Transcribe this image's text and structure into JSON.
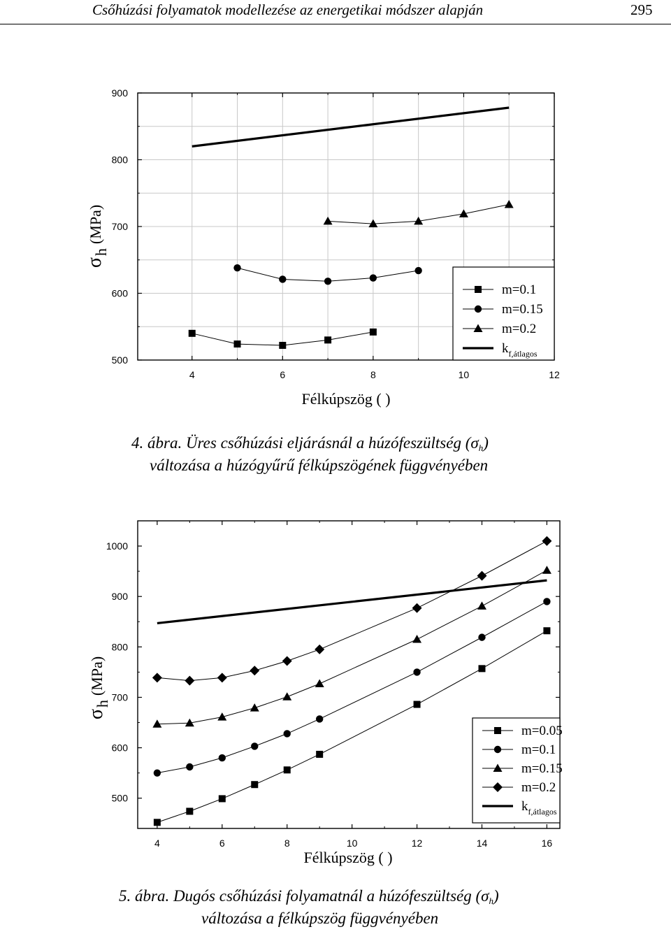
{
  "header": {
    "title": "Csőhúzási folyamatok modellezése az energetikai módszer alapján",
    "page_number": "295"
  },
  "captions": [
    {
      "line1_prefix": "4. ábra. Üres csőhúzási eljárásnál a húzófeszültség (",
      "sigma": "σ",
      "sub": "h",
      "line1_suffix": ")",
      "line2": "változása a húzógyűrű félkúpszögének függvényében"
    },
    {
      "line1_prefix": "5. ábra. Dugós csőhúzási folyamatnál a húzófeszültség (",
      "sigma": "σ",
      "sub": "h",
      "line1_suffix": ")",
      "line2": "változása a félkúpszög függvényében"
    }
  ],
  "chart_data": [
    {
      "type": "line",
      "xlabel": "Félkúpszög ( )",
      "ylabel_sigma": "σ",
      "ylabel_sub": "h",
      "ylabel_unit": "(MPa)",
      "xlim": [
        2.8,
        12
      ],
      "ylim": [
        500,
        900
      ],
      "xticks": [
        4,
        6,
        8,
        10,
        12
      ],
      "yticks": [
        500,
        600,
        700,
        800,
        900
      ],
      "grid": true,
      "legend_position": "bottom-right",
      "series": [
        {
          "name": "m=0.1",
          "marker": "square",
          "x": [
            4,
            5,
            6,
            7,
            8
          ],
          "y": [
            540,
            524,
            522,
            530,
            542
          ]
        },
        {
          "name": "m=0.15",
          "marker": "circle",
          "x": [
            5,
            6,
            7,
            8,
            9
          ],
          "y": [
            638,
            621,
            618,
            623,
            634
          ]
        },
        {
          "name": "m=0.2",
          "marker": "triangle",
          "x": [
            7,
            8,
            9,
            10,
            11
          ],
          "y": [
            708,
            704,
            708,
            719,
            733
          ]
        },
        {
          "name": "k",
          "name_sub": "f,átlagos",
          "marker": "none",
          "thick": true,
          "x": [
            4,
            11
          ],
          "y": [
            820,
            878
          ]
        }
      ]
    },
    {
      "type": "line",
      "xlabel": "Félkúpszög ( )",
      "ylabel_sigma": "σ",
      "ylabel_sub": "h",
      "ylabel_unit": "(MPa)",
      "xlim": [
        3.4,
        16.4
      ],
      "ylim": [
        440,
        1050
      ],
      "xticks": [
        4,
        6,
        8,
        10,
        12,
        14,
        16
      ],
      "yticks": [
        500,
        600,
        700,
        800,
        900,
        1000
      ],
      "grid": false,
      "legend_position": "bottom-right",
      "series": [
        {
          "name": "m=0.05",
          "marker": "square",
          "x": [
            4,
            5,
            6,
            7,
            8,
            9,
            12,
            14,
            16
          ],
          "y": [
            452,
            474,
            499,
            527,
            556,
            587,
            686,
            757,
            832
          ]
        },
        {
          "name": "m=0.1",
          "marker": "circle",
          "x": [
            4,
            5,
            6,
            7,
            8,
            9,
            12,
            14,
            16
          ],
          "y": [
            550,
            562,
            580,
            603,
            628,
            657,
            750,
            819,
            890
          ]
        },
        {
          "name": "m=0.15",
          "marker": "triangle",
          "x": [
            4,
            5,
            6,
            7,
            8,
            9,
            12,
            14,
            16
          ],
          "y": [
            647,
            649,
            661,
            679,
            701,
            727,
            815,
            881,
            952
          ]
        },
        {
          "name": "m=0.2",
          "marker": "diamond",
          "x": [
            4,
            5,
            6,
            7,
            8,
            9,
            12,
            14,
            16
          ],
          "y": [
            739,
            733,
            739,
            753,
            772,
            795,
            877,
            941,
            1010
          ]
        },
        {
          "name": "k",
          "name_sub": "f,átlagos",
          "marker": "none",
          "thick": true,
          "x": [
            4,
            16
          ],
          "y": [
            847,
            932
          ]
        }
      ]
    }
  ]
}
